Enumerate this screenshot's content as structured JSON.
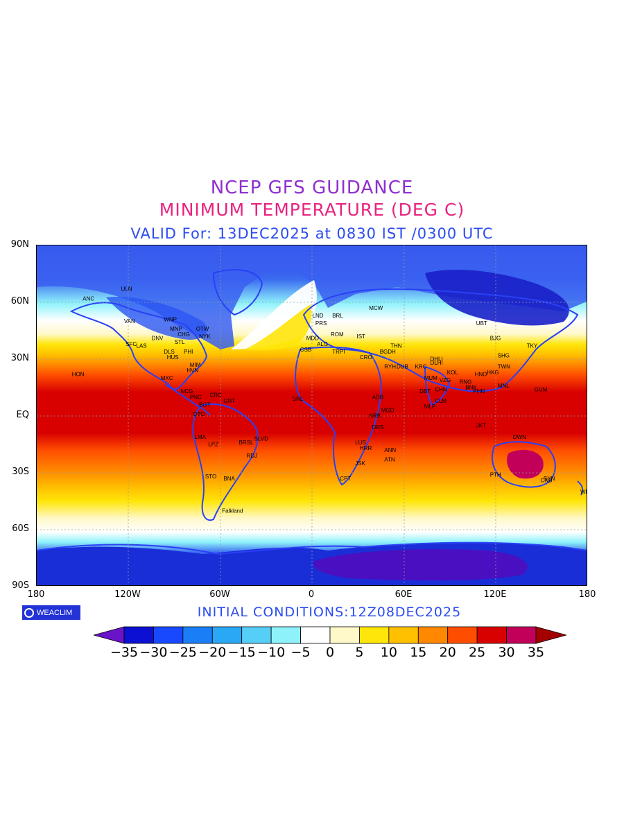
{
  "titles": {
    "line1": "NCEP GFS GUIDANCE",
    "line2": "MINIMUM TEMPERATURE (DEG C)",
    "line3": "VALID For: 13DEC2025 at 0830 IST /0300 UTC"
  },
  "axes": {
    "lat_labels": [
      "90N",
      "60N",
      "30N",
      "EQ",
      "30S",
      "60S",
      "90S"
    ],
    "lon_labels": [
      "180",
      "120W",
      "60W",
      "0",
      "60E",
      "120E",
      "180"
    ]
  },
  "brand": {
    "name": "WEACLIM"
  },
  "initial_conditions": "INITIAL CONDITIONS:12Z08DEC2025",
  "colorbar": {
    "labels": [
      "-35",
      "-30",
      "-25",
      "-20",
      "-15",
      "-10",
      "-5",
      "0",
      "5",
      "10",
      "15",
      "20",
      "25",
      "30",
      "35"
    ],
    "colors": [
      "#6a13c8",
      "#0b10d2",
      "#1949ff",
      "#1a7ff6",
      "#2aa7f5",
      "#55cff8",
      "#8ff2fb",
      "#ffffff",
      "#fff8c8",
      "#ffe60a",
      "#ffc000",
      "#ff8800",
      "#ff4d00",
      "#d90000",
      "#c2005a",
      "#a30000"
    ]
  },
  "cities": [
    {
      "name": "ANC",
      "lon": -150,
      "lat": 61
    },
    {
      "name": "ULN",
      "lon": -125,
      "lat": 66
    },
    {
      "name": "VAN",
      "lon": -123,
      "lat": 49
    },
    {
      "name": "WNP",
      "lon": -97,
      "lat": 50
    },
    {
      "name": "MNP",
      "lon": -93,
      "lat": 45
    },
    {
      "name": "CHG",
      "lon": -88,
      "lat": 42
    },
    {
      "name": "OTW",
      "lon": -76,
      "lat": 45
    },
    {
      "name": "NYK",
      "lon": -74,
      "lat": 41
    },
    {
      "name": "SFC",
      "lon": -122,
      "lat": 37
    },
    {
      "name": "LAS",
      "lon": -115,
      "lat": 36
    },
    {
      "name": "DNV",
      "lon": -105,
      "lat": 40
    },
    {
      "name": "STL",
      "lon": -90,
      "lat": 38
    },
    {
      "name": "DLS",
      "lon": -97,
      "lat": 33
    },
    {
      "name": "HUS",
      "lon": -95,
      "lat": 30
    },
    {
      "name": "PHI",
      "lon": -84,
      "lat": 33
    },
    {
      "name": "MIM",
      "lon": -80,
      "lat": 26
    },
    {
      "name": "HVN",
      "lon": -82,
      "lat": 23
    },
    {
      "name": "HON",
      "lon": -157,
      "lat": 21
    },
    {
      "name": "MXC",
      "lon": -99,
      "lat": 19
    },
    {
      "name": "NCG",
      "lon": -86,
      "lat": 12
    },
    {
      "name": "PNC",
      "lon": -80,
      "lat": 9
    },
    {
      "name": "CRC",
      "lon": -67,
      "lat": 10
    },
    {
      "name": "BGT",
      "lon": -74,
      "lat": 5
    },
    {
      "name": "GRT",
      "lon": -58,
      "lat": 7
    },
    {
      "name": "QTO",
      "lon": -78,
      "lat": 0
    },
    {
      "name": "LMA",
      "lon": -77,
      "lat": -12
    },
    {
      "name": "LPZ",
      "lon": -68,
      "lat": -16
    },
    {
      "name": "BRSL",
      "lon": -48,
      "lat": -15
    },
    {
      "name": "SLVD",
      "lon": -38,
      "lat": -13
    },
    {
      "name": "RDJ",
      "lon": -43,
      "lat": -22
    },
    {
      "name": "STO",
      "lon": -70,
      "lat": -33
    },
    {
      "name": "BNA",
      "lon": -58,
      "lat": -34
    },
    {
      "name": "Falkland",
      "lon": -59,
      "lat": -51
    },
    {
      "name": "LND",
      "lon": 0,
      "lat": 52
    },
    {
      "name": "PRS",
      "lon": 2,
      "lat": 48
    },
    {
      "name": "BRL",
      "lon": 13,
      "lat": 52
    },
    {
      "name": "MDD",
      "lon": -4,
      "lat": 40
    },
    {
      "name": "ROM",
      "lon": 12,
      "lat": 42
    },
    {
      "name": "IST",
      "lon": 29,
      "lat": 41
    },
    {
      "name": "MCW",
      "lon": 37,
      "lat": 56
    },
    {
      "name": "ALG",
      "lon": 3,
      "lat": 37
    },
    {
      "name": "CSB",
      "lon": -8,
      "lat": 34
    },
    {
      "name": "TRPI",
      "lon": 13,
      "lat": 33
    },
    {
      "name": "CRO",
      "lon": 31,
      "lat": 30
    },
    {
      "name": "BGDH",
      "lon": 44,
      "lat": 33
    },
    {
      "name": "THN",
      "lon": 51,
      "lat": 36
    },
    {
      "name": "RYH",
      "lon": 47,
      "lat": 25
    },
    {
      "name": "DUB",
      "lon": 55,
      "lat": 25
    },
    {
      "name": "KRC",
      "lon": 67,
      "lat": 25
    },
    {
      "name": "DHLI",
      "lon": 77,
      "lat": 29
    },
    {
      "name": "DLHI",
      "lon": 77,
      "lat": 27
    },
    {
      "name": "MUM",
      "lon": 73,
      "lat": 19
    },
    {
      "name": "KOL",
      "lon": 88,
      "lat": 22
    },
    {
      "name": "VZG",
      "lon": 83,
      "lat": 18
    },
    {
      "name": "CHN",
      "lon": 80,
      "lat": 13
    },
    {
      "name": "CLM",
      "lon": 80,
      "lat": 7
    },
    {
      "name": "MLP",
      "lon": 73,
      "lat": 4
    },
    {
      "name": "DBT",
      "lon": 70,
      "lat": 12
    },
    {
      "name": "UBT",
      "lon": 107,
      "lat": 48
    },
    {
      "name": "BJG",
      "lon": 116,
      "lat": 40
    },
    {
      "name": "SHG",
      "lon": 121,
      "lat": 31
    },
    {
      "name": "TKY",
      "lon": 140,
      "lat": 36
    },
    {
      "name": "TWN",
      "lon": 121,
      "lat": 25
    },
    {
      "name": "HKG",
      "lon": 114,
      "lat": 22
    },
    {
      "name": "HNO",
      "lon": 106,
      "lat": 21
    },
    {
      "name": "RNG",
      "lon": 96,
      "lat": 17
    },
    {
      "name": "BNK",
      "lon": 100,
      "lat": 14
    },
    {
      "name": "PHN",
      "lon": 105,
      "lat": 12
    },
    {
      "name": "MNL",
      "lon": 121,
      "lat": 15
    },
    {
      "name": "GUM",
      "lon": 145,
      "lat": 13
    },
    {
      "name": "JKT",
      "lon": 107,
      "lat": -6
    },
    {
      "name": "DWN",
      "lon": 131,
      "lat": -12
    },
    {
      "name": "PTH",
      "lon": 116,
      "lat": -32
    },
    {
      "name": "SYN",
      "lon": 151,
      "lat": -34
    },
    {
      "name": "CNB",
      "lon": 149,
      "lat": -35
    },
    {
      "name": "WLT",
      "lon": 175,
      "lat": -41
    },
    {
      "name": "ADB",
      "lon": 39,
      "lat": 9
    },
    {
      "name": "NRB",
      "lon": 37,
      "lat": -1
    },
    {
      "name": "DRS",
      "lon": 39,
      "lat": -7
    },
    {
      "name": "MGD",
      "lon": 45,
      "lat": 2
    },
    {
      "name": "ANN",
      "lon": 47,
      "lat": -19
    },
    {
      "name": "ATN",
      "lon": 47,
      "lat": -24
    },
    {
      "name": "LUS",
      "lon": 28,
      "lat": -15
    },
    {
      "name": "HRR",
      "lon": 31,
      "lat": -18
    },
    {
      "name": "JSK",
      "lon": 28,
      "lat": -26
    },
    {
      "name": "CPT",
      "lon": 18,
      "lat": -34
    },
    {
      "name": "SRL",
      "lon": -13,
      "lat": 8
    }
  ]
}
